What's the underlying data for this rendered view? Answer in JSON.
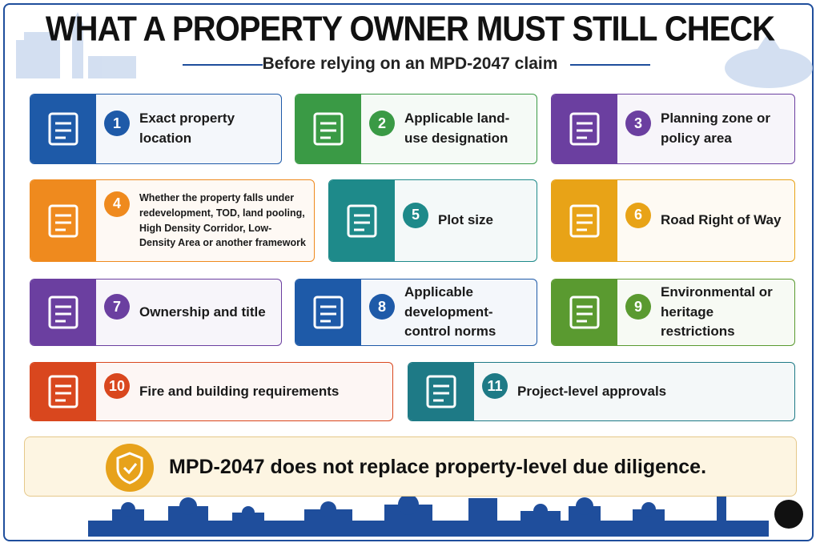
{
  "header": {
    "title": "WHAT A PROPERTY OWNER MUST STILL CHECK",
    "subtitle": "Before relying on an MPD-2047 claim"
  },
  "items": [
    {
      "number": 1,
      "text": "Exact property location"
    },
    {
      "number": 2,
      "text": "Applicable land-use designation"
    },
    {
      "number": 3,
      "text": "Planning zone or policy area"
    },
    {
      "number": 4,
      "text": "Whether the property falls under redevelopment, TOD, land pooling, High Density Corridor, Low-Density Area or another framework"
    },
    {
      "number": 5,
      "text": "Plot size"
    },
    {
      "number": 6,
      "text": "Road Right of Way"
    },
    {
      "number": 7,
      "text": "Ownership and title"
    },
    {
      "number": 8,
      "text": "Applicable development-control norms"
    },
    {
      "number": 9,
      "text": "Environmental or heritage restrictions"
    },
    {
      "number": 10,
      "text": "Fire and building requirements"
    },
    {
      "number": 11,
      "text": "Project-level approvals"
    }
  ],
  "footer": {
    "message": "MPD-2047 does not replace property-level due diligence."
  }
}
